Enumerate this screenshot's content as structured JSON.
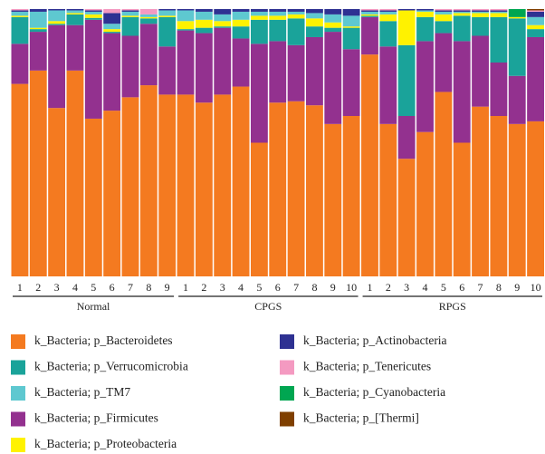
{
  "chart_data": {
    "type": "stacked_bar",
    "categories": [
      "1",
      "2",
      "3",
      "4",
      "5",
      "6",
      "7",
      "8",
      "9",
      "1",
      "2",
      "3",
      "4",
      "5",
      "6",
      "7",
      "8",
      "9",
      "10",
      "1",
      "2",
      "3",
      "4",
      "5",
      "6",
      "7",
      "8",
      "9",
      "10"
    ],
    "groups": [
      "Normal",
      "CPGS",
      "RPGS"
    ],
    "ylim": [
      0,
      100
    ],
    "series": [
      {
        "name": "k_Bacteria; p_Bacteroidetes",
        "color": "#f47a20",
        "values": [
          72,
          77,
          63,
          77,
          59,
          62,
          67,
          71.5,
          68,
          68,
          65,
          68,
          71,
          50,
          65,
          65.5,
          64,
          57,
          60,
          83,
          57,
          44,
          54,
          69,
          50,
          63.5,
          60,
          57,
          58
        ]
      },
      {
        "name": "k_Bacteria; p_Firmicutes",
        "color": "#93318f",
        "values": [
          15,
          14.5,
          31,
          17,
          37,
          29,
          23,
          23,
          18,
          24,
          26,
          25,
          18,
          37,
          23,
          21,
          25.5,
          34.5,
          25,
          14,
          29,
          16,
          34,
          22,
          38,
          26.5,
          20,
          18,
          31.5
        ]
      },
      {
        "name": "k_Bacteria; p_Verrucomicrobia",
        "color": "#1aa39a",
        "values": [
          10,
          1,
          0.5,
          4,
          0.7,
          0.5,
          7,
          2,
          11,
          0.5,
          2,
          0.5,
          4.5,
          9,
          8,
          10,
          4,
          1.5,
          8,
          0.5,
          9.5,
          26.5,
          9,
          4.5,
          9.5,
          7,
          17,
          21.5,
          3
        ]
      },
      {
        "name": "k_Bacteria; p_Proteobacteria",
        "color": "#fff200",
        "values": [
          0.5,
          0.5,
          1,
          0.5,
          1.3,
          1,
          0.5,
          0.5,
          0.5,
          3,
          3,
          2,
          2.5,
          1.5,
          1.5,
          1.5,
          3,
          2,
          0.5,
          0.5,
          2.5,
          13,
          2,
          2.5,
          1,
          1.5,
          1.5,
          0.5,
          1.5
        ]
      },
      {
        "name": "k_Bacteria; p_TM7",
        "color": "#5ec8d0",
        "values": [
          1.5,
          6,
          4,
          1,
          1,
          2,
          1.5,
          1,
          2,
          4,
          3,
          2.5,
          3,
          1.5,
          1.5,
          1,
          2,
          3,
          4,
          1,
          1,
          0,
          0.5,
          1,
          0.5,
          0.5,
          0.5,
          0,
          3
        ]
      },
      {
        "name": "k_Bacteria; p_Actinobacteria",
        "color": "#2e3192",
        "values": [
          0.5,
          1,
          0.5,
          0.5,
          0.5,
          4,
          0.5,
          0,
          0.5,
          0.5,
          1,
          2,
          1,
          1,
          1,
          1,
          1.5,
          2,
          2.5,
          0.5,
          0.5,
          0.5,
          0.5,
          0.5,
          0.5,
          0.5,
          0.5,
          0,
          2
        ]
      },
      {
        "name": "k_Bacteria; p_Tenericutes",
        "color": "#f49ac1",
        "values": [
          0.5,
          0,
          0,
          0,
          0.5,
          1.5,
          0.5,
          2,
          0,
          0,
          0,
          0,
          0,
          0,
          0,
          0,
          0,
          0,
          0,
          0.5,
          0.5,
          0,
          0,
          0.5,
          0.5,
          0.5,
          0.5,
          0,
          0.5
        ]
      },
      {
        "name": "k_Bacteria; p_Cyanobacteria",
        "color": "#00a651",
        "values": [
          0,
          0,
          0,
          0,
          0,
          0,
          0,
          0,
          0,
          0,
          0,
          0,
          0,
          0,
          0,
          0,
          0,
          0,
          0,
          0,
          0,
          0,
          0,
          0,
          0,
          0,
          0,
          3,
          0
        ]
      },
      {
        "name": "k_Bacteria; p_[Thermi]",
        "color": "#7f3f00",
        "values": [
          0,
          0,
          0,
          0,
          0,
          0,
          0,
          0,
          0,
          0,
          0,
          0,
          0,
          0,
          0,
          0,
          0,
          0,
          0,
          0,
          0,
          0,
          0,
          0,
          0,
          0,
          0,
          0,
          0.5
        ]
      }
    ],
    "legend_order": [
      0,
      2,
      4,
      1,
      3,
      5,
      6,
      7,
      8
    ]
  }
}
